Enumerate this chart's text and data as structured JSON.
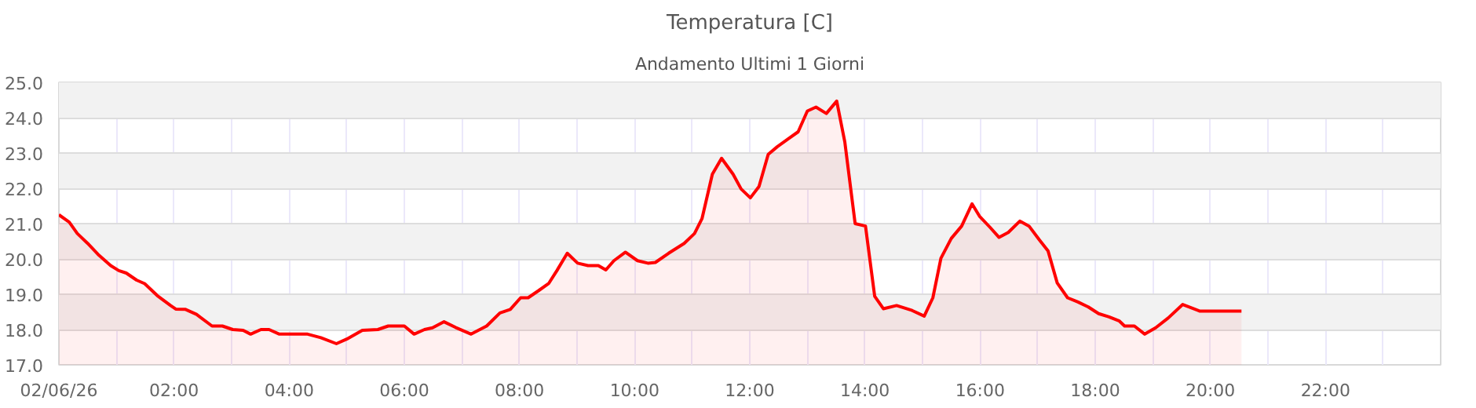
{
  "chart_data": {
    "type": "area",
    "title": "Temperatura [C]",
    "subtitle": "Andamento Ultimi 1 Giorni",
    "series": [
      {
        "color": "#ff0000",
        "x": [
          0.0,
          0.18,
          0.32,
          0.5,
          0.68,
          0.9,
          1.04,
          1.17,
          1.35,
          1.49,
          1.71,
          1.94,
          2.03,
          2.2,
          2.39,
          2.66,
          2.84,
          3.02,
          3.2,
          3.33,
          3.51,
          3.65,
          3.83,
          4.32,
          4.55,
          4.82,
          5.0,
          5.27,
          5.54,
          5.72,
          6.0,
          6.17,
          6.35,
          6.49,
          6.69,
          6.89,
          7.16,
          7.43,
          7.66,
          7.84,
          8.02,
          8.15,
          8.33,
          8.51,
          8.65,
          8.83,
          9.01,
          9.19,
          9.37,
          9.5,
          9.64,
          9.84,
          10.05,
          10.23,
          10.36,
          10.59,
          10.86,
          11.04,
          11.17,
          11.35,
          11.51,
          11.71,
          11.85,
          12.01,
          12.16,
          12.32,
          12.48,
          12.66,
          12.84,
          13.0,
          13.15,
          13.33,
          13.51,
          13.65,
          13.83,
          14.01,
          14.17,
          14.32,
          14.55,
          14.82,
          15.03,
          15.18,
          15.32,
          15.5,
          15.68,
          15.86,
          15.99,
          16.17,
          16.33,
          16.49,
          16.69,
          16.85,
          17.03,
          17.18,
          17.34,
          17.52,
          17.7,
          17.88,
          18.06,
          18.24,
          18.42,
          18.51,
          18.68,
          18.86,
          19.05,
          19.27,
          19.52,
          19.82,
          20.54
        ],
        "values": [
          21.25,
          21.04,
          20.72,
          20.44,
          20.13,
          19.81,
          19.67,
          19.6,
          19.4,
          19.3,
          18.96,
          18.68,
          18.58,
          18.57,
          18.43,
          18.1,
          18.1,
          18.0,
          17.98,
          17.87,
          18.0,
          18.0,
          17.87,
          17.87,
          17.77,
          17.6,
          17.73,
          17.98,
          18.0,
          18.1,
          18.1,
          17.87,
          18.0,
          18.05,
          18.22,
          18.06,
          17.87,
          18.1,
          18.47,
          18.57,
          18.9,
          18.9,
          19.1,
          19.31,
          19.67,
          20.16,
          19.88,
          19.81,
          19.81,
          19.69,
          19.95,
          20.19,
          19.95,
          19.88,
          19.9,
          20.16,
          20.44,
          20.72,
          21.14,
          22.4,
          22.85,
          22.4,
          21.98,
          21.73,
          22.05,
          22.96,
          23.18,
          23.39,
          23.6,
          24.19,
          24.3,
          24.12,
          24.47,
          23.32,
          21.0,
          20.93,
          18.94,
          18.59,
          18.68,
          18.54,
          18.38,
          18.9,
          20.02,
          20.58,
          20.93,
          21.56,
          21.21,
          20.9,
          20.61,
          20.75,
          21.07,
          20.93,
          20.54,
          20.23,
          19.32,
          18.9,
          18.78,
          18.64,
          18.45,
          18.36,
          18.24,
          18.1,
          18.1,
          17.87,
          18.05,
          18.33,
          18.71,
          18.52,
          18.52
        ]
      }
    ],
    "xlim": [
      0,
      24
    ],
    "ylim": [
      17,
      25
    ],
    "xticks": [
      {
        "value": 0,
        "label": "02/06/26"
      },
      {
        "value": 1,
        "label": null
      },
      {
        "value": 2,
        "label": "02:00"
      },
      {
        "value": 3,
        "label": null
      },
      {
        "value": 4,
        "label": "04:00"
      },
      {
        "value": 5,
        "label": null
      },
      {
        "value": 6,
        "label": "06:00"
      },
      {
        "value": 7,
        "label": null
      },
      {
        "value": 8,
        "label": "08:00"
      },
      {
        "value": 9,
        "label": null
      },
      {
        "value": 10,
        "label": "10:00"
      },
      {
        "value": 11,
        "label": null
      },
      {
        "value": 12,
        "label": "12:00"
      },
      {
        "value": 13,
        "label": null
      },
      {
        "value": 14,
        "label": "14:00"
      },
      {
        "value": 15,
        "label": null
      },
      {
        "value": 16,
        "label": "16:00"
      },
      {
        "value": 17,
        "label": null
      },
      {
        "value": 18,
        "label": "18:00"
      },
      {
        "value": 19,
        "label": null
      },
      {
        "value": 20,
        "label": "20:00"
      },
      {
        "value": 21,
        "label": null
      },
      {
        "value": 22,
        "label": "22:00"
      },
      {
        "value": 23,
        "label": null
      }
    ],
    "yticks": [
      {
        "value": 17,
        "label": "17.0"
      },
      {
        "value": 18,
        "label": "18.0"
      },
      {
        "value": 19,
        "label": "19.0"
      },
      {
        "value": 20,
        "label": "20.0"
      },
      {
        "value": 21,
        "label": "21.0"
      },
      {
        "value": 22,
        "label": "22.0"
      },
      {
        "value": 23,
        "label": "23.0"
      },
      {
        "value": 24,
        "label": "24.0"
      },
      {
        "value": 25,
        "label": "25.0"
      }
    ],
    "grid": true,
    "line_style": "solid"
  }
}
